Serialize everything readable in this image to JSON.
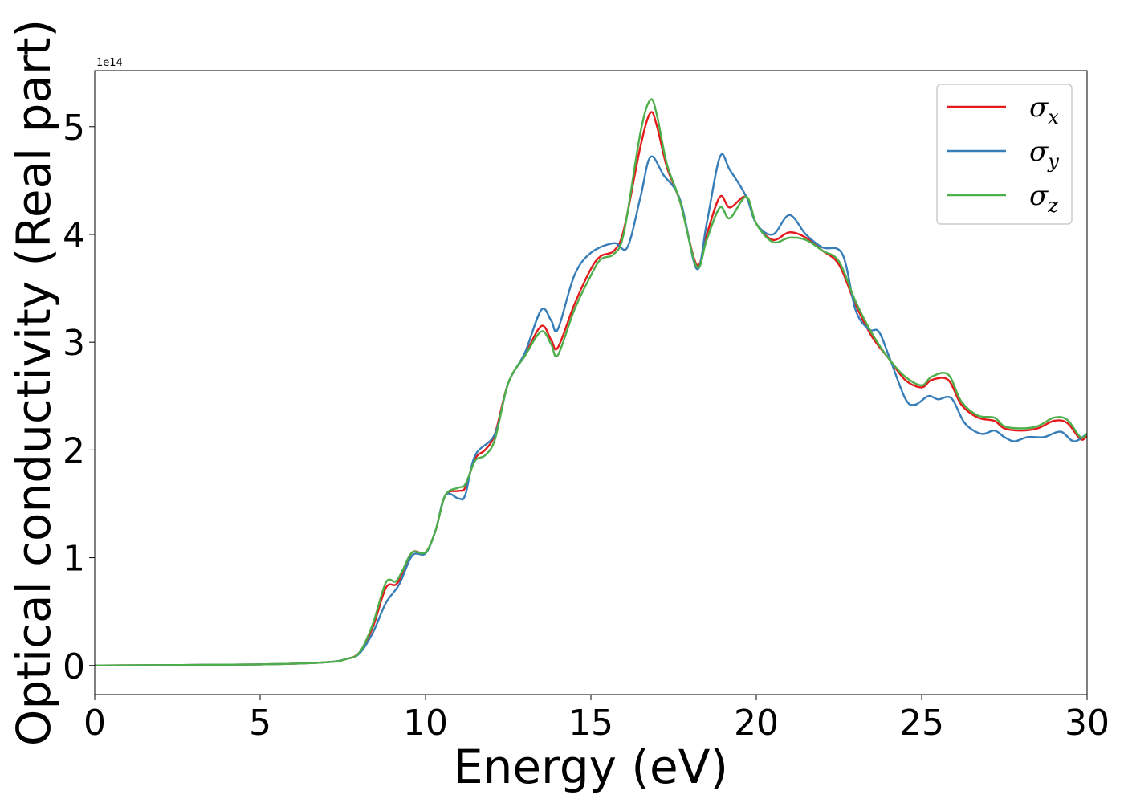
{
  "chart_data": {
    "type": "line",
    "title": "",
    "xlabel": "Energy (eV)",
    "ylabel": "Optical conductivity (Real part)",
    "y_offset_text": "1e14",
    "xlim": [
      0,
      30
    ],
    "ylim": [
      -0.27,
      5.52
    ],
    "grid": false,
    "legend_position": "top-right",
    "x_ticks": [
      0,
      5,
      10,
      15,
      20,
      25,
      30
    ],
    "x_tick_labels": [
      "0",
      "5",
      "10",
      "15",
      "20",
      "25",
      "30"
    ],
    "y_ticks": [
      0,
      1,
      2,
      3,
      4,
      5
    ],
    "y_tick_labels": [
      "0",
      "1",
      "2",
      "3",
      "4",
      "5"
    ],
    "legend": [
      {
        "base": "σ",
        "sub": "x"
      },
      {
        "base": "σ",
        "sub": "y"
      },
      {
        "base": "σ",
        "sub": "z"
      }
    ],
    "series": [
      {
        "name": "σx",
        "color": "#e41a1c",
        "points": [
          [
            0,
            0
          ],
          [
            5,
            0.01
          ],
          [
            7,
            0.03
          ],
          [
            7.6,
            0.06
          ],
          [
            8.0,
            0.12
          ],
          [
            8.4,
            0.35
          ],
          [
            8.8,
            0.72
          ],
          [
            9.1,
            0.75
          ],
          [
            9.3,
            0.85
          ],
          [
            9.6,
            1.05
          ],
          [
            10.0,
            1.05
          ],
          [
            10.3,
            1.25
          ],
          [
            10.6,
            1.58
          ],
          [
            11.0,
            1.62
          ],
          [
            11.2,
            1.65
          ],
          [
            11.5,
            1.92
          ],
          [
            11.8,
            2.0
          ],
          [
            12.1,
            2.15
          ],
          [
            12.5,
            2.62
          ],
          [
            13.0,
            2.88
          ],
          [
            13.5,
            3.15
          ],
          [
            13.8,
            3.02
          ],
          [
            14.0,
            2.95
          ],
          [
            14.5,
            3.35
          ],
          [
            15.0,
            3.68
          ],
          [
            15.3,
            3.8
          ],
          [
            15.7,
            3.85
          ],
          [
            16.0,
            4.05
          ],
          [
            16.5,
            4.82
          ],
          [
            16.8,
            5.13
          ],
          [
            17.0,
            5.0
          ],
          [
            17.3,
            4.62
          ],
          [
            17.7,
            4.3
          ],
          [
            18.2,
            3.72
          ],
          [
            18.5,
            4.0
          ],
          [
            18.9,
            4.35
          ],
          [
            19.2,
            4.25
          ],
          [
            19.7,
            4.35
          ],
          [
            20.0,
            4.1
          ],
          [
            20.5,
            3.95
          ],
          [
            21.0,
            4.02
          ],
          [
            21.5,
            3.97
          ],
          [
            22.0,
            3.85
          ],
          [
            22.5,
            3.72
          ],
          [
            23.0,
            3.35
          ],
          [
            23.5,
            3.05
          ],
          [
            24.0,
            2.85
          ],
          [
            24.5,
            2.65
          ],
          [
            25.0,
            2.58
          ],
          [
            25.3,
            2.65
          ],
          [
            25.8,
            2.65
          ],
          [
            26.2,
            2.42
          ],
          [
            26.7,
            2.3
          ],
          [
            27.2,
            2.27
          ],
          [
            27.5,
            2.2
          ],
          [
            28.0,
            2.18
          ],
          [
            28.5,
            2.2
          ],
          [
            29.0,
            2.27
          ],
          [
            29.4,
            2.25
          ],
          [
            29.8,
            2.1
          ],
          [
            30,
            2.13
          ]
        ]
      },
      {
        "name": "σy",
        "color": "#377eb8",
        "points": [
          [
            0,
            0
          ],
          [
            5,
            0.01
          ],
          [
            7,
            0.03
          ],
          [
            7.6,
            0.06
          ],
          [
            8.0,
            0.11
          ],
          [
            8.4,
            0.3
          ],
          [
            8.8,
            0.58
          ],
          [
            9.2,
            0.75
          ],
          [
            9.6,
            1.02
          ],
          [
            10.0,
            1.04
          ],
          [
            10.3,
            1.25
          ],
          [
            10.6,
            1.58
          ],
          [
            11.0,
            1.55
          ],
          [
            11.2,
            1.58
          ],
          [
            11.5,
            1.95
          ],
          [
            12.1,
            2.15
          ],
          [
            12.5,
            2.62
          ],
          [
            13.0,
            2.9
          ],
          [
            13.5,
            3.3
          ],
          [
            13.8,
            3.2
          ],
          [
            14.0,
            3.12
          ],
          [
            14.5,
            3.62
          ],
          [
            15.0,
            3.83
          ],
          [
            15.7,
            3.92
          ],
          [
            16.1,
            3.88
          ],
          [
            16.5,
            4.35
          ],
          [
            16.8,
            4.72
          ],
          [
            17.2,
            4.55
          ],
          [
            17.7,
            4.32
          ],
          [
            18.2,
            3.68
          ],
          [
            18.5,
            4.1
          ],
          [
            18.9,
            4.72
          ],
          [
            19.2,
            4.6
          ],
          [
            19.7,
            4.35
          ],
          [
            20.0,
            4.1
          ],
          [
            20.5,
            4.0
          ],
          [
            21.0,
            4.18
          ],
          [
            21.5,
            4.0
          ],
          [
            22.0,
            3.88
          ],
          [
            22.6,
            3.82
          ],
          [
            23.0,
            3.3
          ],
          [
            23.4,
            3.12
          ],
          [
            23.7,
            3.1
          ],
          [
            24.0,
            2.88
          ],
          [
            24.5,
            2.48
          ],
          [
            24.8,
            2.42
          ],
          [
            25.2,
            2.5
          ],
          [
            25.5,
            2.47
          ],
          [
            25.9,
            2.48
          ],
          [
            26.3,
            2.25
          ],
          [
            26.8,
            2.15
          ],
          [
            27.2,
            2.18
          ],
          [
            27.5,
            2.12
          ],
          [
            27.8,
            2.08
          ],
          [
            28.2,
            2.12
          ],
          [
            28.7,
            2.12
          ],
          [
            29.2,
            2.17
          ],
          [
            29.6,
            2.08
          ],
          [
            30,
            2.15
          ]
        ]
      },
      {
        "name": "σz",
        "color": "#4daf4a",
        "points": [
          [
            0,
            0
          ],
          [
            5,
            0.01
          ],
          [
            7,
            0.03
          ],
          [
            7.6,
            0.06
          ],
          [
            8.0,
            0.12
          ],
          [
            8.4,
            0.38
          ],
          [
            8.8,
            0.77
          ],
          [
            9.1,
            0.78
          ],
          [
            9.3,
            0.88
          ],
          [
            9.6,
            1.05
          ],
          [
            10.0,
            1.05
          ],
          [
            10.3,
            1.25
          ],
          [
            10.6,
            1.58
          ],
          [
            11.0,
            1.65
          ],
          [
            11.2,
            1.68
          ],
          [
            11.5,
            1.9
          ],
          [
            11.8,
            1.95
          ],
          [
            12.1,
            2.1
          ],
          [
            12.5,
            2.62
          ],
          [
            13.0,
            2.87
          ],
          [
            13.5,
            3.1
          ],
          [
            13.8,
            2.98
          ],
          [
            14.0,
            2.88
          ],
          [
            14.5,
            3.3
          ],
          [
            15.0,
            3.62
          ],
          [
            15.3,
            3.77
          ],
          [
            15.7,
            3.82
          ],
          [
            16.0,
            4.02
          ],
          [
            16.5,
            4.95
          ],
          [
            16.8,
            5.25
          ],
          [
            17.0,
            5.1
          ],
          [
            17.3,
            4.65
          ],
          [
            17.7,
            4.3
          ],
          [
            18.2,
            3.7
          ],
          [
            18.5,
            3.95
          ],
          [
            18.9,
            4.25
          ],
          [
            19.2,
            4.15
          ],
          [
            19.7,
            4.35
          ],
          [
            20.0,
            4.1
          ],
          [
            20.5,
            3.93
          ],
          [
            21.0,
            3.97
          ],
          [
            21.5,
            3.95
          ],
          [
            22.0,
            3.85
          ],
          [
            22.5,
            3.75
          ],
          [
            23.0,
            3.38
          ],
          [
            23.5,
            3.08
          ],
          [
            24.0,
            2.85
          ],
          [
            24.5,
            2.68
          ],
          [
            25.0,
            2.6
          ],
          [
            25.3,
            2.68
          ],
          [
            25.8,
            2.7
          ],
          [
            26.2,
            2.45
          ],
          [
            26.7,
            2.32
          ],
          [
            27.2,
            2.3
          ],
          [
            27.5,
            2.22
          ],
          [
            28.0,
            2.2
          ],
          [
            28.5,
            2.22
          ],
          [
            29.0,
            2.3
          ],
          [
            29.4,
            2.28
          ],
          [
            29.8,
            2.12
          ],
          [
            30,
            2.15
          ]
        ]
      }
    ]
  }
}
